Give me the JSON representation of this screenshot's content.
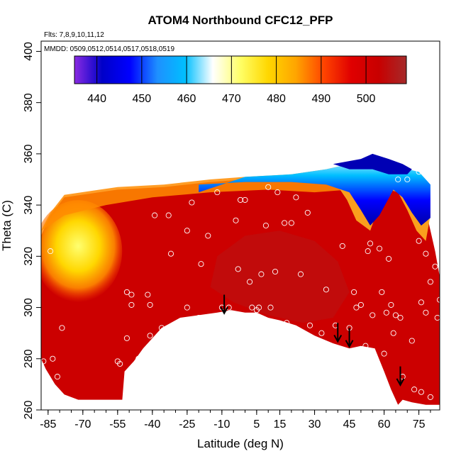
{
  "chart_data": {
    "type": "heatmap",
    "title": "ATOM4 Northbound CFC12_PFP",
    "subtitle_flights": "Flts: 7,8,9,10,11,12",
    "subtitle_dates": "MMDD: 0509,0512,0514,0517,0518,0519",
    "xlabel": "Latitude (deg N)",
    "ylabel": "Theta (C)",
    "xlim": [
      -88,
      84
    ],
    "ylim": [
      260,
      404
    ],
    "x_ticks": [
      -85,
      -70,
      -55,
      -40,
      -25,
      -10,
      5,
      15,
      30,
      45,
      60,
      75
    ],
    "y_ticks": [
      260,
      280,
      300,
      320,
      340,
      360,
      380,
      400
    ],
    "colorbar": {
      "min": 435,
      "max": 509,
      "ticks": [
        440,
        450,
        460,
        470,
        480,
        490,
        500
      ],
      "colors": [
        "#8a2be2",
        "#0000c8",
        "#0000ff",
        "#1e90ff",
        "#00bfff",
        "#ffffff",
        "#ffff66",
        "#ffd700",
        "#ffa500",
        "#ff4500",
        "#e00000",
        "#c80000",
        "#a52a2a"
      ]
    },
    "arrows": [
      {
        "lat": -9,
        "theta": 303
      },
      {
        "lat": 40,
        "theta": 292
      },
      {
        "lat": 45,
        "theta": 290
      },
      {
        "lat": 67,
        "theta": 275
      }
    ],
    "samples": [
      [
        -87,
        279
      ],
      [
        -81,
        273
      ],
      [
        -79,
        292
      ],
      [
        -83,
        280
      ],
      [
        -84,
        322
      ],
      [
        -55,
        279
      ],
      [
        -54,
        278
      ],
      [
        -51,
        288
      ],
      [
        -51,
        306
      ],
      [
        -49,
        305
      ],
      [
        -49,
        301
      ],
      [
        -46,
        280
      ],
      [
        -42,
        305
      ],
      [
        -41,
        301
      ],
      [
        -39,
        336
      ],
      [
        -41,
        289
      ],
      [
        -36,
        292
      ],
      [
        -33,
        336
      ],
      [
        -32,
        321
      ],
      [
        -25,
        300
      ],
      [
        -24,
        292
      ],
      [
        -20,
        296
      ],
      [
        -19,
        317
      ],
      [
        -16,
        328
      ],
      [
        -12,
        345
      ],
      [
        -25,
        330
      ],
      [
        -23,
        341
      ],
      [
        -10,
        300
      ],
      [
        -7,
        300
      ],
      [
        -4,
        334
      ],
      [
        -3,
        315
      ],
      [
        -2,
        342
      ],
      [
        0,
        342
      ],
      [
        2,
        310
      ],
      [
        3,
        300
      ],
      [
        5,
        299
      ],
      [
        6,
        300
      ],
      [
        7,
        313
      ],
      [
        9,
        332
      ],
      [
        10,
        347
      ],
      [
        11,
        300
      ],
      [
        13,
        314
      ],
      [
        14,
        345
      ],
      [
        17,
        333
      ],
      [
        18,
        294
      ],
      [
        20,
        333
      ],
      [
        22,
        343
      ],
      [
        24,
        313
      ],
      [
        27,
        337
      ],
      [
        28,
        293
      ],
      [
        33,
        290
      ],
      [
        35,
        307
      ],
      [
        39,
        293
      ],
      [
        42,
        324
      ],
      [
        45,
        292
      ],
      [
        47,
        306
      ],
      [
        48,
        300
      ],
      [
        50,
        301
      ],
      [
        52,
        285
      ],
      [
        53,
        322
      ],
      [
        54,
        325
      ],
      [
        55,
        297
      ],
      [
        58,
        323
      ],
      [
        59,
        306
      ],
      [
        60,
        282
      ],
      [
        61,
        298
      ],
      [
        62,
        319
      ],
      [
        63,
        301
      ],
      [
        64,
        290
      ],
      [
        65,
        297
      ],
      [
        66,
        350
      ],
      [
        67,
        296
      ],
      [
        68,
        273
      ],
      [
        70,
        350
      ],
      [
        72,
        287
      ],
      [
        73,
        268
      ],
      [
        75,
        326
      ],
      [
        76,
        302
      ],
      [
        76,
        267
      ],
      [
        78,
        321
      ],
      [
        78,
        298
      ],
      [
        80,
        310
      ],
      [
        80,
        265
      ],
      [
        82,
        316
      ],
      [
        83,
        296
      ],
      [
        84,
        303
      ],
      [
        75,
        353
      ]
    ]
  }
}
